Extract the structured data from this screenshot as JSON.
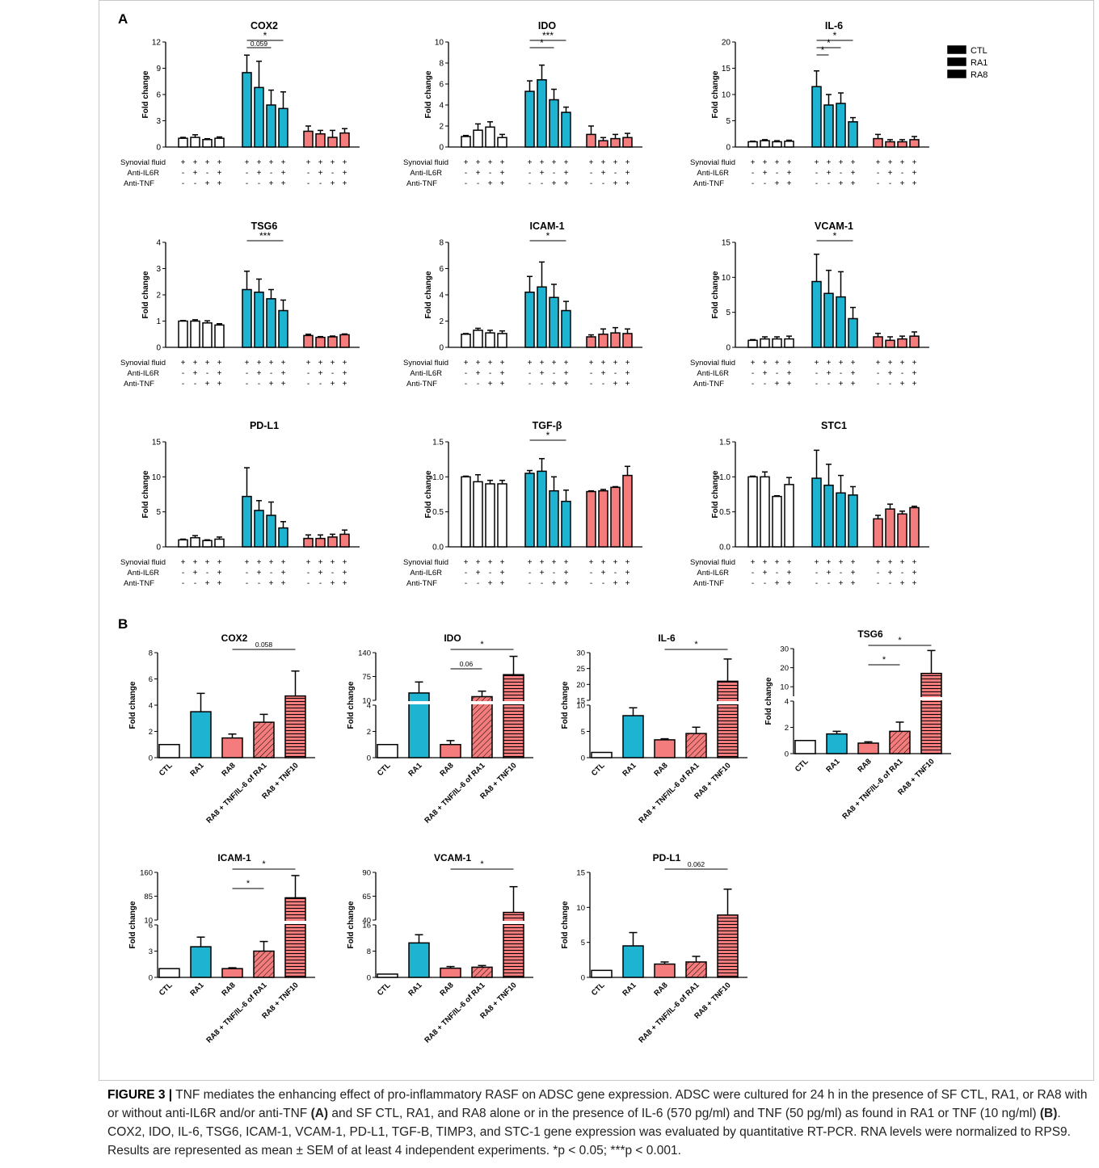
{
  "figure": {
    "panel_a_label": "A",
    "panel_b_label": "B",
    "legend": [
      {
        "label": "CTL",
        "color": "#ffffff"
      },
      {
        "label": "RA1",
        "color": "#1eb3d0"
      },
      {
        "label": "RA8",
        "color": "#f47c7c"
      }
    ],
    "row_labels": [
      "Synovial fluid",
      "Anti-IL6R",
      "Anti-TNF"
    ],
    "row_signs": [
      [
        "+",
        "+",
        "+",
        "+"
      ],
      [
        "-",
        "+",
        "-",
        "+"
      ],
      [
        "-",
        "-",
        "+",
        "+"
      ]
    ],
    "ylabel": "Fold change"
  },
  "caption": {
    "label": "FIGURE 3 |",
    "part1": "TNF mediates the enhancing effect of pro-inflammatory RASF on ADSC gene expression. ADSC were cultured for 24 h in the presence of SF CTL, RA1, or RA8 with or without anti-IL6R and/or anti-TNF",
    "ref_a": "(A)",
    "part2": "and SF CTL, RA1, and RA8 alone or in the presence of IL-6 (570 pg/ml) and TNF (50 pg/ml) as found in RA1 or TNF (10 ng/ml)",
    "ref_b": "(B)",
    "part3": ". COX2, IDO, IL-6, TSG6, ICAM-1, VCAM-1, PD-L1, TGF-B, TIMP3, and STC-1 gene expression was evaluated by quantitative RT-PCR. RNA levels were normalized to RPS9. Results are represented as mean ± SEM of at least 4 independent experiments. *p < 0.05; ***p < 0.001."
  },
  "chart_data": [
    {
      "panel": "A",
      "type": "bar",
      "title": "COX2",
      "ylabel": "Fold change",
      "ylim": [
        0,
        12
      ],
      "yticks": [
        0,
        3,
        6,
        9,
        12
      ],
      "groups": [
        "CTL",
        "RA1",
        "RA8"
      ],
      "values": [
        [
          1.0,
          1.1,
          0.85,
          1.0
        ],
        [
          8.5,
          6.8,
          4.8,
          4.4
        ],
        [
          1.8,
          1.5,
          1.1,
          1.6
        ]
      ],
      "errors": [
        [
          0.1,
          0.3,
          0.1,
          0.15
        ],
        [
          2.0,
          3.0,
          1.7,
          1.9
        ],
        [
          0.6,
          0.4,
          0.8,
          0.5
        ]
      ],
      "annotations": [
        {
          "from": [
            1,
            0
          ],
          "to": [
            1,
            2
          ],
          "text": "0.059"
        },
        {
          "from": [
            1,
            0
          ],
          "to": [
            1,
            3
          ],
          "text": "*"
        }
      ]
    },
    {
      "panel": "A",
      "type": "bar",
      "title": "IDO",
      "ylabel": "Fold change",
      "ylim": [
        0,
        10
      ],
      "yticks": [
        0,
        2,
        4,
        6,
        8,
        10
      ],
      "groups": [
        "CTL",
        "RA1",
        "RA8"
      ],
      "values": [
        [
          1.0,
          1.6,
          1.9,
          0.9
        ],
        [
          5.3,
          6.4,
          4.5,
          3.3
        ],
        [
          1.2,
          0.6,
          0.8,
          0.9
        ]
      ],
      "errors": [
        [
          0.1,
          0.6,
          0.5,
          0.3
        ],
        [
          1.0,
          1.4,
          1.0,
          0.5
        ],
        [
          0.8,
          0.3,
          0.4,
          0.4
        ]
      ],
      "annotations": [
        {
          "from": [
            1,
            0
          ],
          "to": [
            1,
            2
          ],
          "text": "*"
        },
        {
          "from": [
            1,
            0
          ],
          "to": [
            1,
            3
          ],
          "text": "***"
        }
      ]
    },
    {
      "panel": "A",
      "type": "bar",
      "title": "IL-6",
      "ylabel": "Fold change",
      "ylim": [
        0,
        20
      ],
      "yticks": [
        0,
        5,
        10,
        15,
        20
      ],
      "groups": [
        "CTL",
        "RA1",
        "RA8"
      ],
      "values": [
        [
          1.0,
          1.2,
          1.0,
          1.1
        ],
        [
          11.5,
          8.0,
          8.3,
          4.8
        ],
        [
          1.6,
          1.0,
          1.0,
          1.4
        ]
      ],
      "errors": [
        [
          0.1,
          0.2,
          0.2,
          0.2
        ],
        [
          3.0,
          2.0,
          2.0,
          0.8
        ],
        [
          0.8,
          0.4,
          0.4,
          0.6
        ]
      ],
      "annotations": [
        {
          "from": [
            1,
            0
          ],
          "to": [
            1,
            1
          ],
          "text": "*"
        },
        {
          "from": [
            1,
            0
          ],
          "to": [
            1,
            2
          ],
          "text": "*"
        },
        {
          "from": [
            1,
            0
          ],
          "to": [
            1,
            3
          ],
          "text": "*"
        }
      ]
    },
    {
      "panel": "A",
      "type": "bar",
      "title": "TSG6",
      "ylabel": "Fold change",
      "ylim": [
        0,
        4
      ],
      "yticks": [
        0,
        1,
        2,
        3,
        4
      ],
      "groups": [
        "CTL",
        "RA1",
        "RA8"
      ],
      "values": [
        [
          1.0,
          1.0,
          0.93,
          0.85
        ],
        [
          2.2,
          2.1,
          1.85,
          1.4
        ],
        [
          0.45,
          0.38,
          0.4,
          0.48
        ]
      ],
      "errors": [
        [
          0.02,
          0.05,
          0.08,
          0.05
        ],
        [
          0.7,
          0.5,
          0.35,
          0.4
        ],
        [
          0.05,
          0.03,
          0.03,
          0.03
        ]
      ],
      "annotations": [
        {
          "from": [
            1,
            0
          ],
          "to": [
            1,
            3
          ],
          "text": "***"
        }
      ]
    },
    {
      "panel": "A",
      "type": "bar",
      "title": "ICAM-1",
      "ylabel": "Fold change",
      "ylim": [
        0,
        8
      ],
      "yticks": [
        0,
        2,
        4,
        6,
        8
      ],
      "groups": [
        "CTL",
        "RA1",
        "RA8"
      ],
      "values": [
        [
          1.0,
          1.3,
          1.1,
          1.05
        ],
        [
          4.2,
          4.6,
          3.8,
          2.8
        ],
        [
          0.8,
          1.0,
          1.1,
          1.05
        ]
      ],
      "errors": [
        [
          0.05,
          0.15,
          0.2,
          0.2
        ],
        [
          1.2,
          1.9,
          1.0,
          0.7
        ],
        [
          0.15,
          0.4,
          0.4,
          0.35
        ]
      ],
      "annotations": [
        {
          "from": [
            1,
            0
          ],
          "to": [
            1,
            3
          ],
          "text": "*"
        }
      ]
    },
    {
      "panel": "A",
      "type": "bar",
      "title": "VCAM-1",
      "ylabel": "Fold change",
      "ylim": [
        0,
        15
      ],
      "yticks": [
        0,
        5,
        10,
        15
      ],
      "groups": [
        "CTL",
        "RA1",
        "RA8"
      ],
      "values": [
        [
          1.0,
          1.2,
          1.2,
          1.2
        ],
        [
          9.4,
          7.7,
          7.2,
          4.1
        ],
        [
          1.5,
          1.0,
          1.2,
          1.6
        ]
      ],
      "errors": [
        [
          0.1,
          0.3,
          0.3,
          0.4
        ],
        [
          3.9,
          3.3,
          3.6,
          1.6
        ],
        [
          0.5,
          0.5,
          0.4,
          0.6
        ]
      ],
      "annotations": [
        {
          "from": [
            1,
            0
          ],
          "to": [
            1,
            3
          ],
          "text": "*"
        }
      ]
    },
    {
      "panel": "A",
      "type": "bar",
      "title": "PD-L1",
      "ylabel": "Fold change",
      "ylim": [
        0,
        15
      ],
      "yticks": [
        0,
        5,
        10,
        15
      ],
      "groups": [
        "CTL",
        "RA1",
        "RA8"
      ],
      "values": [
        [
          1.0,
          1.3,
          0.9,
          1.1
        ],
        [
          7.2,
          5.2,
          4.5,
          2.7
        ],
        [
          1.2,
          1.2,
          1.4,
          1.8
        ]
      ],
      "errors": [
        [
          0.1,
          0.3,
          0.1,
          0.3
        ],
        [
          4.1,
          1.4,
          1.9,
          0.9
        ],
        [
          0.5,
          0.5,
          0.4,
          0.6
        ]
      ],
      "annotations": []
    },
    {
      "panel": "A",
      "type": "bar",
      "title": "TGF-β",
      "ylabel": "Fold change",
      "ylim": [
        0,
        1.5
      ],
      "yticks": [
        "0.0",
        "0.5",
        "1.0",
        "1.5"
      ],
      "groups": [
        "CTL",
        "RA1",
        "RA8"
      ],
      "values": [
        [
          1.0,
          0.93,
          0.9,
          0.9
        ],
        [
          1.05,
          1.08,
          0.8,
          0.65
        ],
        [
          0.79,
          0.8,
          0.85,
          1.02
        ]
      ],
      "errors": [
        [
          0.01,
          0.1,
          0.05,
          0.05
        ],
        [
          0.04,
          0.18,
          0.2,
          0.16
        ],
        [
          0.01,
          0.02,
          0.01,
          0.13
        ]
      ],
      "annotations": [
        {
          "from": [
            1,
            0
          ],
          "to": [
            1,
            3
          ],
          "text": "*"
        }
      ]
    },
    {
      "panel": "A",
      "type": "bar",
      "title": "STC1",
      "ylabel": "Fold change",
      "ylim": [
        0,
        1.5
      ],
      "yticks": [
        "0.0",
        "0.5",
        "1.0",
        "1.5"
      ],
      "groups": [
        "CTL",
        "RA1",
        "RA8"
      ],
      "values": [
        [
          1.0,
          1.0,
          0.72,
          0.89
        ],
        [
          0.98,
          0.88,
          0.77,
          0.74
        ],
        [
          0.4,
          0.54,
          0.47,
          0.56
        ]
      ],
      "errors": [
        [
          0.01,
          0.07,
          0.01,
          0.1
        ],
        [
          0.4,
          0.3,
          0.25,
          0.12
        ],
        [
          0.05,
          0.07,
          0.04,
          0.02
        ]
      ],
      "annotations": []
    },
    {
      "panel": "B",
      "type": "bar",
      "title": "COX2",
      "ylabel": "Fold change",
      "categories": [
        "CTL",
        "RA1",
        "RA8",
        "RA8 + TNF/IL-6 of RA1",
        "RA8 + TNF10"
      ],
      "values": [
        1.0,
        3.5,
        1.5,
        2.7,
        4.7
      ],
      "errors": [
        0.0,
        1.4,
        0.3,
        0.6,
        1.9
      ],
      "ylim": [
        0,
        8
      ],
      "yticks": [
        0,
        2,
        4,
        6,
        8
      ],
      "annotations": [
        {
          "from": 2,
          "to": 4,
          "text": "0.058"
        }
      ]
    },
    {
      "panel": "B",
      "type": "bar",
      "title": "IDO",
      "ylabel": "Fold change",
      "categories": [
        "CTL",
        "RA1",
        "RA8",
        "RA8 + TNF/IL-6 of RA1",
        "RA8 + TNF10"
      ],
      "values": [
        1.0,
        30,
        1.0,
        20,
        80
      ],
      "errors": [
        0.0,
        30,
        0.3,
        15,
        50
      ],
      "broken_axis": {
        "lower": [
          0,
          4
        ],
        "upper": [
          10,
          140
        ],
        "lower_ticks": [
          0,
          2,
          4
        ],
        "upper_ticks": [
          10,
          75,
          140
        ]
      },
      "annotations": [
        {
          "from": 2,
          "to": 3,
          "text": "0.06"
        },
        {
          "from": 2,
          "to": 4,
          "text": "*"
        }
      ]
    },
    {
      "panel": "B",
      "type": "bar",
      "title": "IL-6",
      "ylabel": "Fold change",
      "categories": [
        "CTL",
        "RA1",
        "RA8",
        "RA8 + TNF/IL-6 of RA1",
        "RA8 + TNF10"
      ],
      "values": [
        1.0,
        8.0,
        3.4,
        4.6,
        21
      ],
      "errors": [
        0.0,
        1.5,
        0.2,
        1.2,
        7
      ],
      "broken_axis": {
        "lower": [
          0,
          10
        ],
        "upper": [
          15,
          30
        ],
        "lower_ticks": [
          0,
          5,
          10
        ],
        "upper_ticks": [
          15,
          20,
          25,
          30
        ]
      },
      "annotations": [
        {
          "from": 2,
          "to": 4,
          "text": "*"
        }
      ]
    },
    {
      "panel": "B",
      "type": "bar",
      "title": "TSG6",
      "ylabel": "Fold change",
      "categories": [
        "CTL",
        "RA1",
        "RA8",
        "RA8 + TNF/IL-6 of RA1",
        "RA8 + TNF10"
      ],
      "values": [
        1.0,
        1.5,
        0.8,
        1.7,
        17
      ],
      "errors": [
        0.0,
        0.2,
        0.1,
        0.7,
        12
      ],
      "broken_axis": {
        "lower": [
          0,
          4
        ],
        "upper": [
          5,
          30
        ],
        "lower_ticks": [
          0,
          2,
          4
        ],
        "upper_ticks": [
          10,
          20,
          30
        ]
      },
      "annotations": [
        {
          "from": 2,
          "to": 3,
          "text": "*"
        },
        {
          "from": 2,
          "to": 4,
          "text": "*"
        }
      ]
    },
    {
      "panel": "B",
      "type": "bar",
      "title": "ICAM-1",
      "ylabel": "Fold change",
      "categories": [
        "CTL",
        "RA1",
        "RA8",
        "RA8 + TNF/IL-6 of RA1",
        "RA8 + TNF10"
      ],
      "values": [
        1.0,
        3.5,
        1.0,
        3.0,
        80
      ],
      "errors": [
        0.0,
        1.1,
        0.1,
        1.1,
        70
      ],
      "broken_axis": {
        "lower": [
          0,
          6
        ],
        "upper": [
          10,
          160
        ],
        "lower_ticks": [
          0,
          3,
          6
        ],
        "upper_ticks": [
          10,
          85,
          160
        ]
      },
      "annotations": [
        {
          "from": 2,
          "to": 3,
          "text": "*"
        },
        {
          "from": 2,
          "to": 4,
          "text": "*"
        }
      ]
    },
    {
      "panel": "B",
      "type": "bar",
      "title": "VCAM-1",
      "ylabel": "Fold change",
      "categories": [
        "CTL",
        "RA1",
        "RA8",
        "RA8 + TNF/IL-6 of RA1",
        "RA8 + TNF10"
      ],
      "values": [
        1.0,
        10.5,
        2.8,
        3.1,
        48
      ],
      "errors": [
        0.0,
        2.5,
        0.5,
        0.5,
        27
      ],
      "broken_axis": {
        "lower": [
          0,
          16
        ],
        "upper": [
          40,
          90
        ],
        "lower_ticks": [
          0,
          8,
          16
        ],
        "upper_ticks": [
          40,
          65,
          90
        ]
      },
      "annotations": [
        {
          "from": 2,
          "to": 4,
          "text": "*"
        }
      ]
    },
    {
      "panel": "B",
      "type": "bar",
      "title": "PD-L1",
      "ylabel": "Fold change",
      "categories": [
        "CTL",
        "RA1",
        "RA8",
        "RA8 + TNF/IL-6 of RA1",
        "RA8 + TNF10"
      ],
      "values": [
        1.0,
        4.5,
        1.9,
        2.2,
        8.9
      ],
      "errors": [
        0.0,
        1.9,
        0.3,
        0.8,
        3.7
      ],
      "ylim": [
        0,
        15
      ],
      "yticks": [
        0,
        5,
        10,
        15
      ],
      "annotations": [
        {
          "from": 2,
          "to": 4,
          "text": "0.062"
        }
      ]
    }
  ]
}
